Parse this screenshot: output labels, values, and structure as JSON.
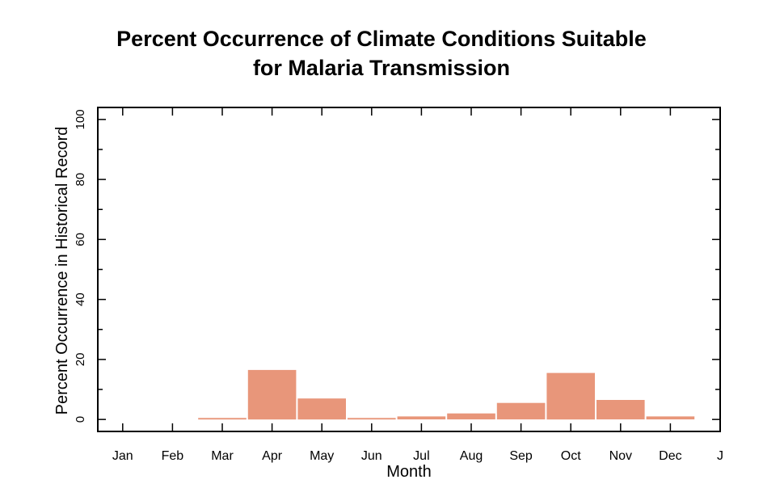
{
  "chart_data": {
    "type": "bar",
    "title_lines": [
      "Percent Occurrence of Climate Conditions Suitable",
      "for Malaria Transmission"
    ],
    "xlabel": "Month",
    "ylabel": "Percent Occurrence in Historical Record",
    "categories": [
      "Jan",
      "Feb",
      "Mar",
      "Apr",
      "May",
      "Jun",
      "Jul",
      "Aug",
      "Sep",
      "Oct",
      "Nov",
      "Dec"
    ],
    "x_tick_labels": [
      "Jan",
      "Feb",
      "Mar",
      "Apr",
      "May",
      "Jun",
      "Jul",
      "Aug",
      "Sep",
      "Oct",
      "Nov",
      "Dec",
      "J"
    ],
    "values": [
      0,
      0,
      0.5,
      16.5,
      7,
      0.5,
      1,
      2,
      5.5,
      15.5,
      6.5,
      1
    ],
    "ylim": [
      -4,
      104
    ],
    "y_ticks": [
      0,
      20,
      40,
      60,
      80,
      100
    ],
    "bar_color": "#e8967a",
    "grid": false
  }
}
